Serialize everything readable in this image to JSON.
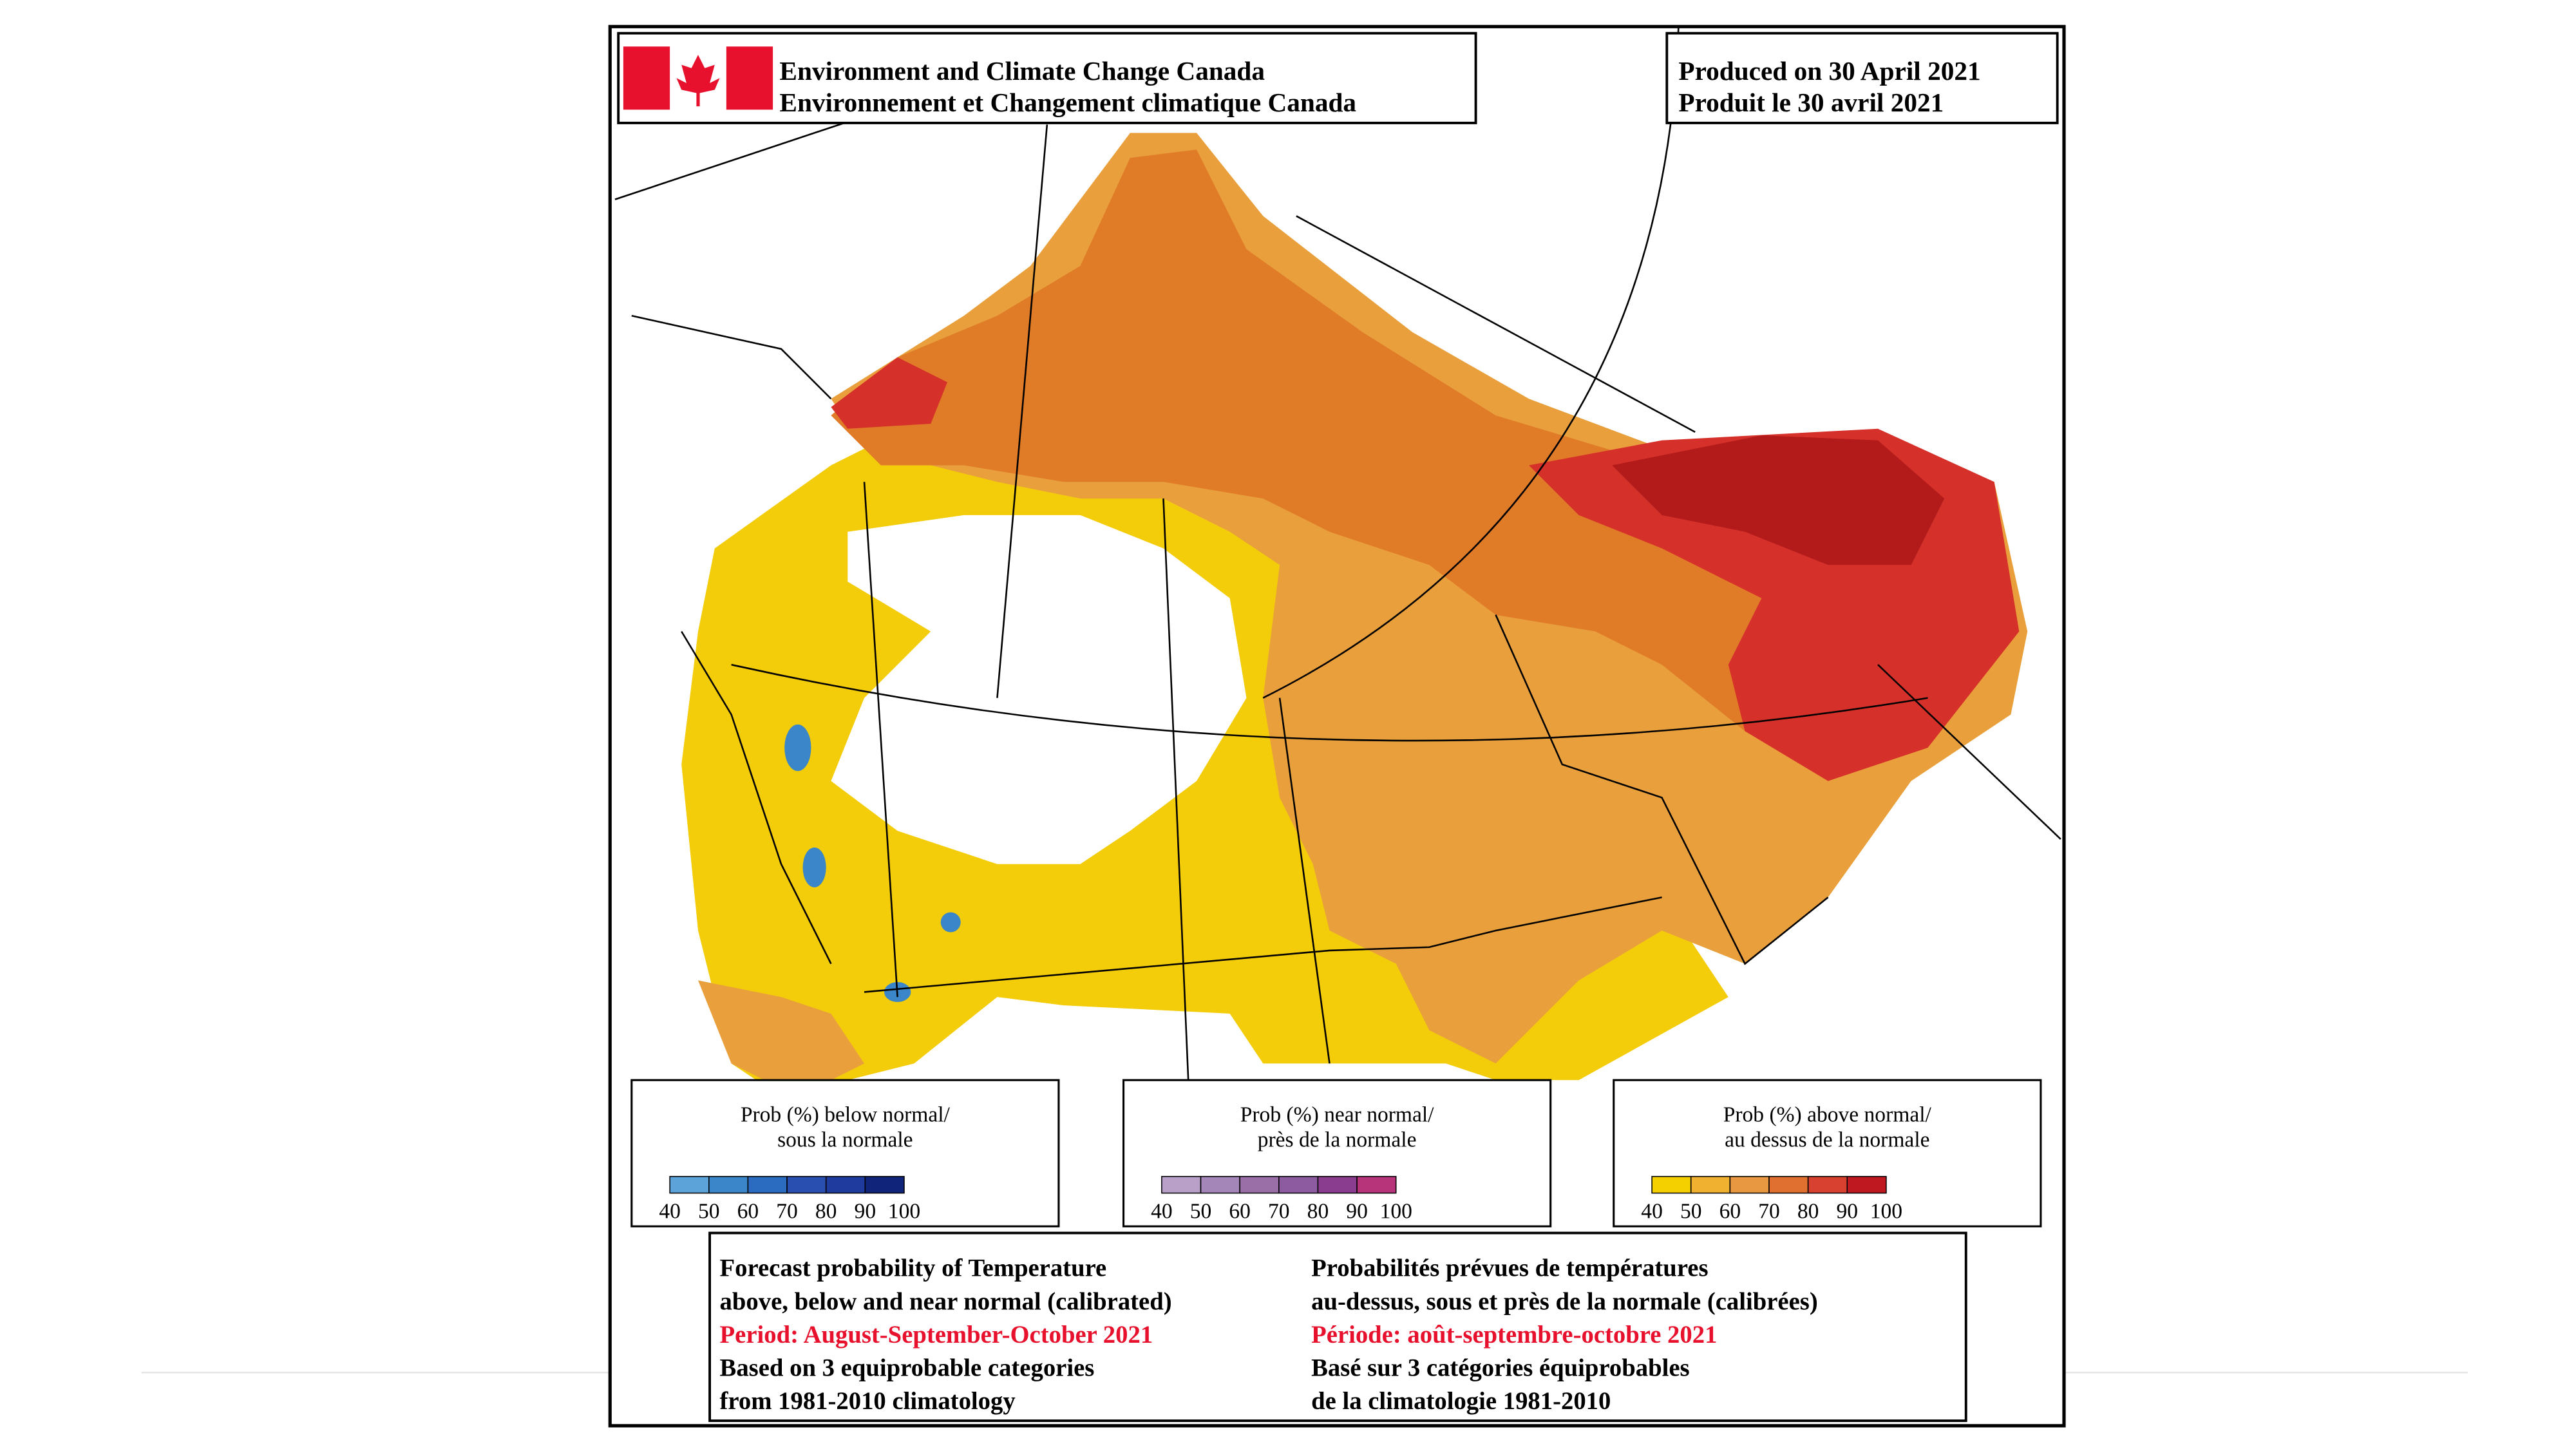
{
  "header": {
    "agency_en": "Environment and Climate Change Canada",
    "agency_fr": "Environnement et Changement climatique Canada"
  },
  "produced": {
    "en": "Produced on 30 April 2021",
    "fr": "Produit le 30 avril 2021"
  },
  "legends": [
    {
      "title_lines": [
        "Prob (%) below normal/",
        "sous la normale"
      ],
      "labels": [
        40,
        50,
        60,
        70,
        80,
        90,
        100
      ]
    },
    {
      "title_lines": [
        "Prob (%) near normal/",
        "près de la normale"
      ],
      "labels": [
        40,
        50,
        60,
        70,
        80,
        90,
        100
      ]
    },
    {
      "title_lines": [
        "Prob (%) above normal/",
        "au dessus de la normale"
      ],
      "labels": [
        40,
        50,
        60,
        70,
        80,
        90,
        100
      ]
    }
  ],
  "footer": {
    "left": [
      "Forecast probability of Temperature",
      "above, below and near normal (calibrated)",
      "Period: August-September-October 2021",
      "Based on 3 equiprobable categories",
      " from 1981-2010 climatology"
    ],
    "right": [
      "Probabilités prévues de températures",
      "au-dessus, sous et près de la normale (calibrées)",
      "Période: août-septembre-octobre 2021",
      "Basé sur 3 catégories équiprobables",
      "de la climatologie 1981-2010"
    ]
  }
}
